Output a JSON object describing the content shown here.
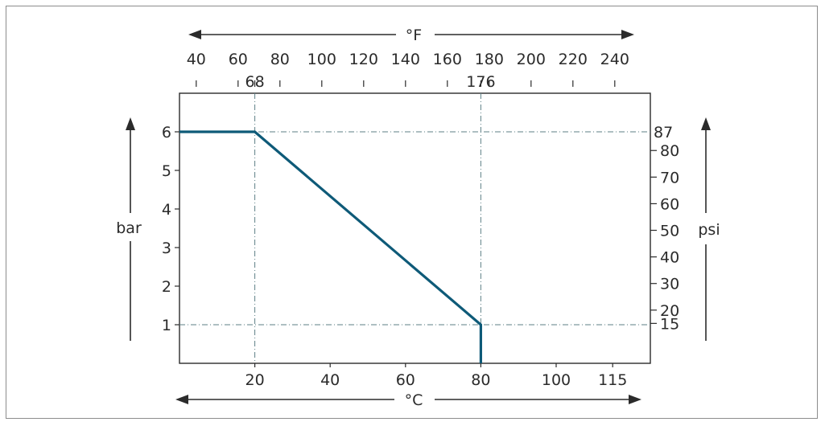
{
  "chart_data": {
    "type": "line",
    "title": "",
    "xlabel": "°C",
    "ylabel": "bar",
    "top_axis_label": "°F",
    "right_axis_label": "psi",
    "xlim": [
      0,
      125
    ],
    "ylim": [
      0,
      7
    ],
    "x_ticks": [
      20,
      40,
      60,
      80,
      100,
      115
    ],
    "y_ticks": [
      1,
      2,
      3,
      4,
      5,
      6
    ],
    "top_ticks": [
      40,
      60,
      80,
      100,
      120,
      140,
      160,
      180,
      200,
      220,
      240
    ],
    "top_markers": [
      68,
      176
    ],
    "right_ticks": [
      15,
      20,
      30,
      40,
      50,
      60,
      70,
      80
    ],
    "right_marker": 87,
    "series": [
      {
        "x": [
          0,
          20,
          80,
          80
        ],
        "y": [
          6,
          6,
          1,
          0
        ],
        "color": "#0e5a78"
      }
    ],
    "reference_lines": [
      {
        "axis": "x",
        "value": 20
      },
      {
        "axis": "x",
        "value": 80
      },
      {
        "axis": "y",
        "value": 6
      },
      {
        "axis": "y",
        "value": 1
      }
    ],
    "grid": false,
    "colors": {
      "curve": "#0e5a78",
      "reference": "#5e7f86",
      "axis": "#2b2b2b"
    }
  }
}
